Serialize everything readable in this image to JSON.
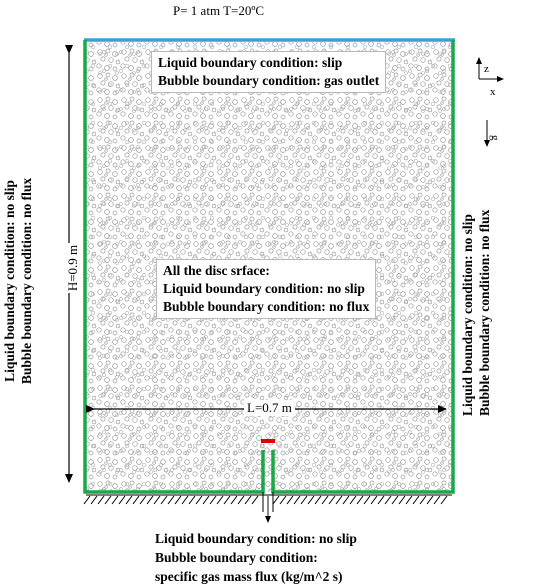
{
  "header": {
    "conditions": "P= 1 atm  T=20ºC"
  },
  "top_box": {
    "line1": "Liquid boundary condition:  slip",
    "line2": "Bubble boundary condition: gas outlet"
  },
  "center_box": {
    "line1": "All the disc srface:",
    "line2": "Liquid boundary condition: no slip",
    "line3": "Bubble boundary condition: no flux"
  },
  "left_wall": {
    "line1": "Liquid boundary condition: no slip",
    "line2": "Bubble boundary condition: no flux"
  },
  "right_wall": {
    "line1": "Liquid boundary condition: no slip",
    "line2": "Bubble boundary condition: no flux"
  },
  "bottom": {
    "line1": "Liquid boundary condition: no slip",
    "line2": "Bubble boundary condition:",
    "line3": "specific gas mass flux (kg/m^2 s)"
  },
  "dimensions": {
    "height_label": "H=0.9 m",
    "width_label": "L=0.7 m"
  },
  "axes": {
    "z": "z",
    "x": "x",
    "g": "g"
  },
  "colors": {
    "wall": "#1aa84b",
    "top_outlet": "#3aa0d8",
    "inlet_marker": "#e00000",
    "bubbles": "#9a9a9a"
  }
}
